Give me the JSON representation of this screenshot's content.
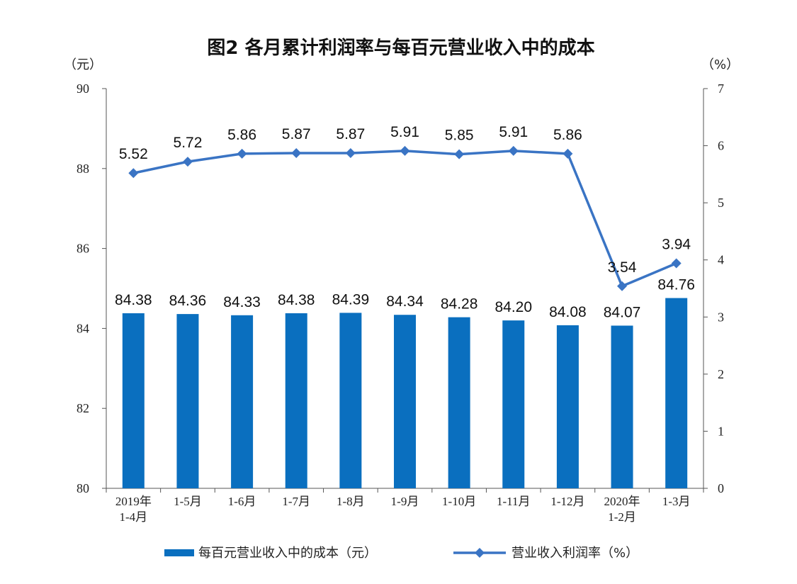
{
  "chart_data": {
    "type": "bar+line",
    "title": "图2  各月累计利润率与每百元营业收入中的成本",
    "categories": [
      [
        "2019年",
        "1-4月"
      ],
      [
        "1-5月"
      ],
      [
        "1-6月"
      ],
      [
        "1-7月"
      ],
      [
        "1-8月"
      ],
      [
        "1-9月"
      ],
      [
        "1-10月"
      ],
      [
        "1-11月"
      ],
      [
        "1-12月"
      ],
      [
        "2020年",
        "1-2月"
      ],
      [
        "1-3月"
      ]
    ],
    "left_axis": {
      "unit": "（元）",
      "ylim": [
        80,
        90
      ],
      "ticks": [
        "80",
        "82",
        "84",
        "86",
        "88",
        "90"
      ]
    },
    "right_axis": {
      "unit": "（%）",
      "ylim": [
        0,
        7
      ],
      "ticks": [
        "0",
        "1",
        "2",
        "3",
        "4",
        "5",
        "6",
        "7"
      ]
    },
    "series": [
      {
        "name": "每百元营业收入中的成本（元）",
        "type": "bar",
        "axis": "left",
        "color": "#0a6fbf",
        "values": [
          84.38,
          84.36,
          84.33,
          84.38,
          84.39,
          84.34,
          84.28,
          84.2,
          84.08,
          84.07,
          84.76
        ],
        "labels": [
          "84.38",
          "84.36",
          "84.33",
          "84.38",
          "84.39",
          "84.34",
          "84.28",
          "84.20",
          "84.08",
          "84.07",
          "84.76"
        ]
      },
      {
        "name": "营业收入利润率（%）",
        "type": "line",
        "axis": "right",
        "color": "#3a74c4",
        "values": [
          5.52,
          5.72,
          5.86,
          5.87,
          5.87,
          5.91,
          5.85,
          5.91,
          5.86,
          3.54,
          3.94
        ],
        "labels": [
          "5.52",
          "5.72",
          "5.86",
          "5.87",
          "5.87",
          "5.91",
          "5.85",
          "5.91",
          "5.86",
          "3.54",
          "3.94"
        ]
      }
    ],
    "grid": false,
    "legend_position": "bottom"
  }
}
